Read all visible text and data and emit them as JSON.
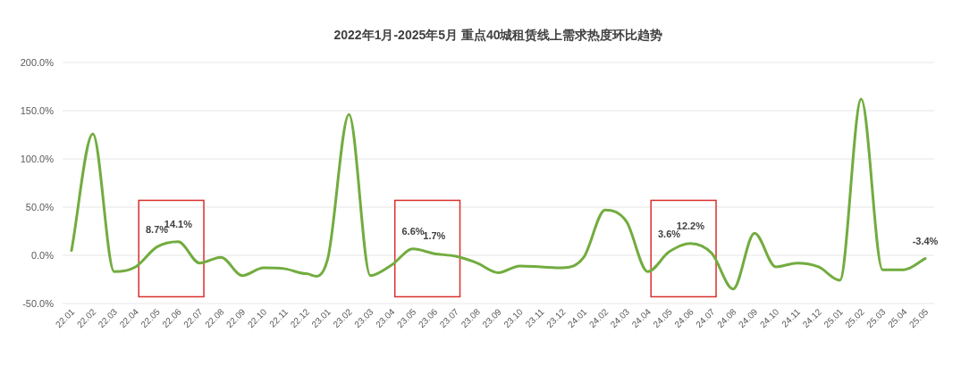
{
  "chart_data": {
    "type": "line",
    "title": "2022年1月-2025年5月 重点40城租赁线上需求热度环比趋势",
    "categories": [
      "22.01",
      "22.02",
      "22.03",
      "22.04",
      "22.05",
      "22.06",
      "22.07",
      "22.08",
      "22.09",
      "22.10",
      "22.11",
      "22.12",
      "23.01",
      "23.02",
      "23.03",
      "23.04",
      "23.05",
      "23.06",
      "23.07",
      "23.08",
      "23.09",
      "23.10",
      "23.11",
      "23.12",
      "24.01",
      "24.02",
      "24.03",
      "24.04",
      "24.05",
      "24.06",
      "24.07",
      "24.08",
      "24.09",
      "24.10",
      "24.11",
      "24.12",
      "25.01",
      "25.02",
      "25.03",
      "25.04",
      "25.05"
    ],
    "series": [
      {
        "color": "#72ac3f",
        "values": [
          5,
          126,
          -17,
          -12,
          8.7,
          14.1,
          -8,
          -2,
          -21,
          -13,
          -14,
          -19,
          -4,
          146,
          -21,
          -10,
          6.6,
          1.7,
          -1,
          -8,
          -18,
          -11,
          -12,
          -13,
          -2,
          47,
          35,
          -17,
          3.6,
          12.2,
          2,
          -35,
          23,
          -12,
          -8,
          -12,
          -26,
          162,
          -15,
          -15,
          -3.4
        ],
        "value_labels": [
          null,
          null,
          null,
          null,
          "8.7%",
          "14.1%",
          null,
          null,
          null,
          null,
          null,
          null,
          null,
          null,
          null,
          null,
          "6.6%",
          "1.7%",
          null,
          null,
          null,
          null,
          null,
          null,
          null,
          null,
          null,
          null,
          "3.6%",
          "12.2%",
          null,
          null,
          null,
          null,
          null,
          null,
          null,
          null,
          null,
          null,
          "-3.4%"
        ]
      }
    ],
    "ylim": [
      -50,
      200
    ],
    "yticks": [
      {
        "value": -50,
        "label": "-50.0%"
      },
      {
        "value": 0,
        "label": "0.0%"
      },
      {
        "value": 50,
        "label": "50.0%"
      },
      {
        "value": 100,
        "label": "100.0%"
      },
      {
        "value": 150,
        "label": "150.0%"
      },
      {
        "value": 200,
        "label": "200.0%"
      }
    ],
    "grid": "y",
    "marker": "none",
    "line_style": "solid"
  }
}
